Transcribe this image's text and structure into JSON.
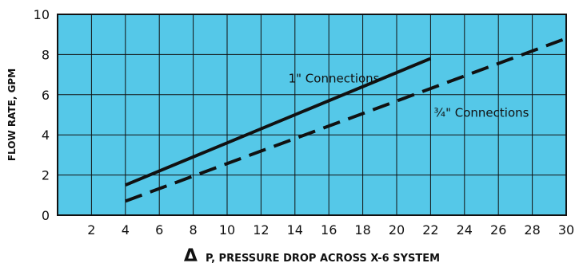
{
  "chart_data": {
    "type": "line",
    "title": "",
    "xlabel_symbol": "Δ",
    "xlabel": "P, PRESSURE DROP ACROSS X-6 SYSTEM",
    "ylabel": "FLOW RATE, GPM",
    "xlim": [
      0,
      30
    ],
    "ylim": [
      0,
      10
    ],
    "x_ticks": [
      2,
      4,
      6,
      8,
      10,
      12,
      14,
      16,
      18,
      20,
      22,
      24,
      26,
      28,
      30
    ],
    "y_ticks": [
      0,
      2,
      4,
      6,
      8,
      10
    ],
    "grid": true,
    "background_color": "#55c8e8",
    "line_color": "#111111",
    "series": [
      {
        "name": "1\" Connections",
        "style": "solid",
        "x": [
          4,
          22
        ],
        "y": [
          1.5,
          7.8
        ]
      },
      {
        "name": "¾\" Connections",
        "style": "dashed",
        "x": [
          4,
          30
        ],
        "y": [
          0.7,
          8.8
        ]
      }
    ],
    "annotations": [
      {
        "text": "1\" Connections",
        "x": 16.3,
        "y": 6.8
      },
      {
        "text": "¾\" Connections",
        "x": 25.0,
        "y": 5.1
      }
    ]
  }
}
